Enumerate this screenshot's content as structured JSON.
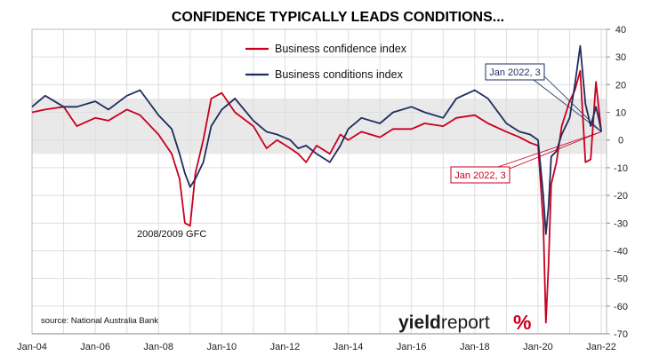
{
  "chart_data": {
    "type": "line",
    "title": "CONFIDENCE TYPICALLY LEADS CONDITIONS...",
    "source": "source: National Australia Bank",
    "logo": {
      "text_bold": "yield",
      "text_regular": "report",
      "symbol": "%"
    },
    "x_tick_labels": [
      "Jan-04",
      "Jan-06",
      "Jan-08",
      "Jan-10",
      "Jan-12",
      "Jan-14",
      "Jan-16",
      "Jan-18",
      "Jan-20",
      "Jan-22"
    ],
    "x_range": [
      "2004-01",
      "2022-03"
    ],
    "ylim": [
      -70,
      40
    ],
    "y_ticks": [
      40,
      30,
      20,
      10,
      0,
      -10,
      -20,
      -30,
      -40,
      -50,
      -60,
      -70
    ],
    "y_axis_position": "right",
    "grid": "vertical and horizontal gridlines",
    "shaded_band": [
      -5,
      15
    ],
    "legend": {
      "placement": "top-center"
    },
    "series": [
      {
        "name": "Business confidence index",
        "color": "#c8001e",
        "points": [
          [
            "2004-01",
            10
          ],
          [
            "2004-06",
            11
          ],
          [
            "2005-01",
            12
          ],
          [
            "2005-06",
            5
          ],
          [
            "2006-01",
            8
          ],
          [
            "2006-06",
            7
          ],
          [
            "2007-01",
            11
          ],
          [
            "2007-06",
            9
          ],
          [
            "2008-01",
            2
          ],
          [
            "2008-06",
            -5
          ],
          [
            "2008-09",
            -14
          ],
          [
            "2008-11",
            -30
          ],
          [
            "2009-01",
            -31
          ],
          [
            "2009-03",
            -12
          ],
          [
            "2009-06",
            0
          ],
          [
            "2009-09",
            15
          ],
          [
            "2010-01",
            17
          ],
          [
            "2010-06",
            10
          ],
          [
            "2011-01",
            5
          ],
          [
            "2011-06",
            -3
          ],
          [
            "2011-10",
            0
          ],
          [
            "2012-03",
            -3
          ],
          [
            "2012-06",
            -5
          ],
          [
            "2012-09",
            -8
          ],
          [
            "2013-01",
            -2
          ],
          [
            "2013-06",
            -5
          ],
          [
            "2013-10",
            2
          ],
          [
            "2014-01",
            0
          ],
          [
            "2014-06",
            3
          ],
          [
            "2015-01",
            1
          ],
          [
            "2015-06",
            4
          ],
          [
            "2016-01",
            4
          ],
          [
            "2016-06",
            6
          ],
          [
            "2017-01",
            5
          ],
          [
            "2017-06",
            8
          ],
          [
            "2018-01",
            9
          ],
          [
            "2018-06",
            6
          ],
          [
            "2019-01",
            3
          ],
          [
            "2019-06",
            1
          ],
          [
            "2019-10",
            -1
          ],
          [
            "2020-01",
            -2
          ],
          [
            "2020-03",
            -30
          ],
          [
            "2020-04",
            -66
          ],
          [
            "2020-05",
            -45
          ],
          [
            "2020-06",
            -16
          ],
          [
            "2020-08",
            -8
          ],
          [
            "2020-10",
            5
          ],
          [
            "2021-01",
            14
          ],
          [
            "2021-03",
            18
          ],
          [
            "2021-05",
            25
          ],
          [
            "2021-07",
            -8
          ],
          [
            "2021-09",
            -7
          ],
          [
            "2021-11",
            21
          ],
          [
            "2021-12",
            12
          ],
          [
            "2022-01",
            3
          ]
        ]
      },
      {
        "name": "Business conditions index",
        "color": "#1f2d5e",
        "points": [
          [
            "2004-01",
            12
          ],
          [
            "2004-06",
            16
          ],
          [
            "2005-01",
            12
          ],
          [
            "2005-06",
            12
          ],
          [
            "2006-01",
            14
          ],
          [
            "2006-06",
            11
          ],
          [
            "2007-01",
            16
          ],
          [
            "2007-06",
            18
          ],
          [
            "2008-01",
            9
          ],
          [
            "2008-06",
            4
          ],
          [
            "2008-09",
            -5
          ],
          [
            "2008-11",
            -12
          ],
          [
            "2009-01",
            -17
          ],
          [
            "2009-03",
            -14
          ],
          [
            "2009-06",
            -8
          ],
          [
            "2009-09",
            5
          ],
          [
            "2010-01",
            11
          ],
          [
            "2010-06",
            15
          ],
          [
            "2011-01",
            7
          ],
          [
            "2011-06",
            3
          ],
          [
            "2011-10",
            2
          ],
          [
            "2012-03",
            0
          ],
          [
            "2012-06",
            -3
          ],
          [
            "2012-09",
            -2
          ],
          [
            "2013-01",
            -5
          ],
          [
            "2013-06",
            -8
          ],
          [
            "2013-10",
            -2
          ],
          [
            "2014-01",
            4
          ],
          [
            "2014-06",
            8
          ],
          [
            "2015-01",
            6
          ],
          [
            "2015-06",
            10
          ],
          [
            "2016-01",
            12
          ],
          [
            "2016-06",
            10
          ],
          [
            "2017-01",
            8
          ],
          [
            "2017-06",
            15
          ],
          [
            "2018-01",
            18
          ],
          [
            "2018-06",
            15
          ],
          [
            "2019-01",
            6
          ],
          [
            "2019-06",
            3
          ],
          [
            "2019-10",
            2
          ],
          [
            "2020-01",
            0
          ],
          [
            "2020-03",
            -20
          ],
          [
            "2020-04",
            -34
          ],
          [
            "2020-05",
            -24
          ],
          [
            "2020-06",
            -6
          ],
          [
            "2020-08",
            -4
          ],
          [
            "2020-10",
            2
          ],
          [
            "2021-01",
            8
          ],
          [
            "2021-03",
            20
          ],
          [
            "2021-05",
            34
          ],
          [
            "2021-07",
            13
          ],
          [
            "2021-09",
            5
          ],
          [
            "2021-11",
            12
          ],
          [
            "2021-12",
            8
          ],
          [
            "2022-01",
            3
          ]
        ]
      }
    ],
    "annotations": [
      {
        "text": "2008/2009 GFC",
        "date": "2008-12",
        "value": -33
      },
      {
        "text": "Jan 2022, 3",
        "series": "Business conditions index",
        "date": "2022-01",
        "value": 3
      },
      {
        "text": "Jan 2022, 3",
        "series": "Business confidence index",
        "date": "2022-01",
        "value": 3
      }
    ]
  }
}
